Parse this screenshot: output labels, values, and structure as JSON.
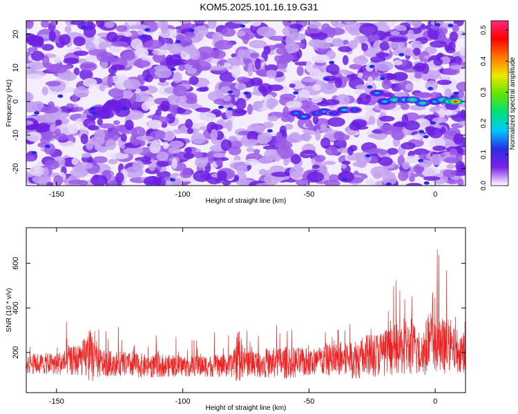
{
  "title": "KOM5.2025.101.16.19.G31",
  "chart_data": [
    {
      "type": "heatmap",
      "xlabel": "Height of straight line (km)",
      "ylabel": "Frequency (Hz)",
      "xlim": [
        -162,
        12
      ],
      "ylim": [
        -25,
        24
      ],
      "x_ticks": [
        -150,
        -100,
        -50,
        0
      ],
      "y_ticks": [
        -20,
        -10,
        0,
        10,
        20
      ],
      "colorbar": {
        "label": "Normalized spectral amplitude",
        "range": [
          0,
          0.53
        ],
        "ticks": [
          "0.0",
          "0.1",
          "0.2",
          "0.3",
          "0.4",
          "0.5"
        ],
        "colors": [
          "#ffffff",
          "#7a22e6",
          "#2b2be6",
          "#00c8ff",
          "#00e07a",
          "#5ee600",
          "#f0e600",
          "#ff7a00",
          "#ff0000",
          "#ff2a7a"
        ]
      },
      "background_noise_level": 0.06,
      "signal_track": {
        "description_colors": "bright trace",
        "points": [
          {
            "x": -55,
            "y": -3.5,
            "amp": 0.18
          },
          {
            "x": -52,
            "y": -4.5,
            "amp": 0.2
          },
          {
            "x": -47,
            "y": -3.5,
            "amp": 0.17
          },
          {
            "x": -44,
            "y": -3,
            "amp": 0.19
          },
          {
            "x": -40,
            "y": -3.5,
            "amp": 0.15
          },
          {
            "x": -36,
            "y": -2.5,
            "amp": 0.22
          },
          {
            "x": -32,
            "y": -2.5,
            "amp": 0.16
          },
          {
            "x": -23,
            "y": 2.5,
            "amp": 0.2
          },
          {
            "x": -20,
            "y": 0,
            "amp": 0.22
          },
          {
            "x": -16,
            "y": 0.5,
            "amp": 0.3
          },
          {
            "x": -12,
            "y": 0.5,
            "amp": 0.25
          },
          {
            "x": -9,
            "y": 0.5,
            "amp": 0.3
          },
          {
            "x": -5,
            "y": -0.5,
            "amp": 0.27
          },
          {
            "x": 0,
            "y": 0,
            "amp": 0.22
          },
          {
            "x": 3,
            "y": 0.5,
            "amp": 0.3
          },
          {
            "x": 6,
            "y": 0,
            "amp": 0.45
          },
          {
            "x": 8,
            "y": 0,
            "amp": 0.53
          }
        ]
      }
    },
    {
      "type": "line",
      "xlabel": "Height of straight line (km)",
      "ylabel": "SNR (10 * v/v)",
      "xlim": [
        -162,
        12
      ],
      "ylim": [
        20,
        760
      ],
      "x_ticks": [
        -150,
        -100,
        -50,
        0
      ],
      "y_ticks": [
        200,
        400,
        600
      ],
      "series": [
        {
          "color": "#ee2222",
          "envelope": {
            "x": [
              -162,
              -150,
              -140,
              -137,
              -132,
              -125,
              -115,
              -100,
              -90,
              -80,
              -78,
              -76,
              -70,
              -60,
              -50,
              -40,
              -30,
              -20,
              -15,
              -10,
              -5,
              -1,
              2,
              5,
              8,
              12
            ],
            "baseline": [
              150,
              150,
              170,
              185,
              150,
              150,
              140,
              140,
              140,
              140,
              190,
              160,
              150,
              155,
              155,
              170,
              175,
              200,
              215,
              220,
              200,
              260,
              230,
              220,
              210,
              200
            ],
            "spread": [
              90,
              100,
              150,
              250,
              120,
              110,
              110,
              95,
              100,
              105,
              260,
              140,
              120,
              150,
              130,
              150,
              190,
              210,
              230,
              250,
              230,
              320,
              280,
              220,
              200,
              180
            ]
          }
        }
      ]
    }
  ]
}
